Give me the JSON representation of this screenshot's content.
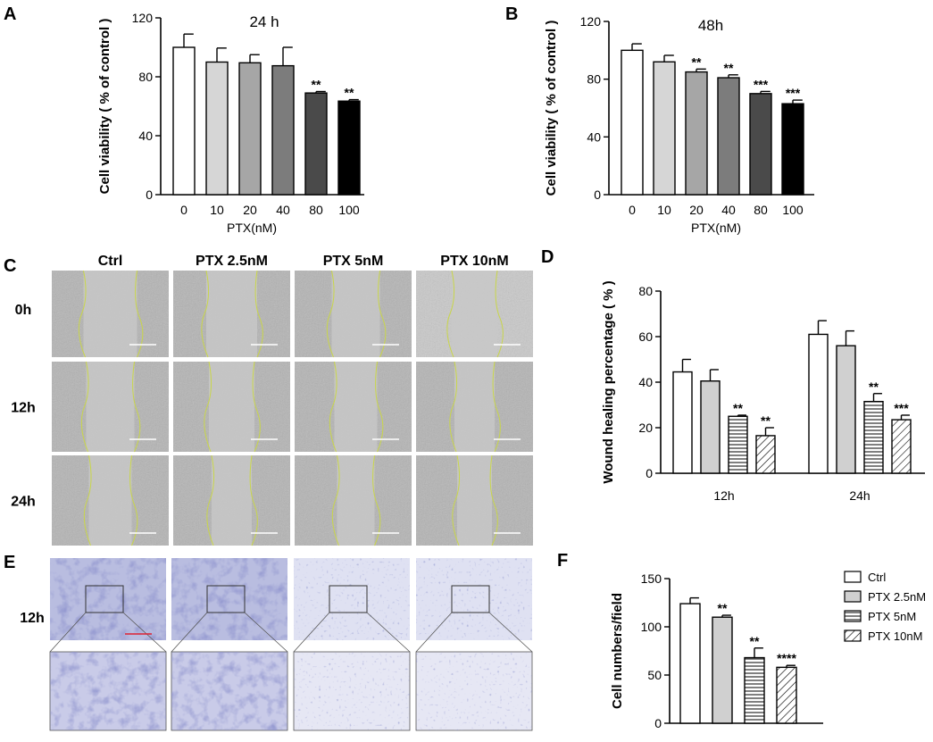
{
  "panel_labels": [
    "A",
    "B",
    "C",
    "D",
    "E",
    "F"
  ],
  "chart_data": [
    {
      "id": "A",
      "type": "bar",
      "title": "24 h",
      "xlabel": "PTX(nM)",
      "ylabel": "Cell viability ( % of control )",
      "categories": [
        "0",
        "10",
        "20",
        "40",
        "80",
        "100"
      ],
      "values": [
        100,
        90,
        89.5,
        87.5,
        69,
        63.5
      ],
      "errors": [
        9,
        9.5,
        5.5,
        12.5,
        1,
        1
      ],
      "annotations": [
        "",
        "",
        "",
        "",
        "**",
        "**"
      ],
      "fills": [
        "#ffffff",
        "#d6d6d6",
        "#a6a6a6",
        "#7c7c7c",
        "#4a4a4a",
        "#000000"
      ],
      "ylim": [
        0,
        120
      ],
      "yticks": [
        0,
        40,
        80,
        120
      ]
    },
    {
      "id": "B",
      "type": "bar",
      "title": "48h",
      "xlabel": "PTX(nM)",
      "ylabel": "Cell viability ( % of control )",
      "categories": [
        "0",
        "10",
        "20",
        "40",
        "80",
        "100"
      ],
      "values": [
        100,
        92,
        85,
        81,
        70,
        63
      ],
      "errors": [
        4.5,
        4.5,
        2,
        2,
        1.5,
        2.5
      ],
      "annotations": [
        "",
        "",
        "**",
        "**",
        "***",
        "***"
      ],
      "fills": [
        "#ffffff",
        "#d6d6d6",
        "#a6a6a6",
        "#7c7c7c",
        "#4a4a4a",
        "#000000"
      ],
      "ylim": [
        0,
        120
      ],
      "yticks": [
        0,
        40,
        80,
        120
      ]
    },
    {
      "id": "D",
      "type": "bar",
      "ylabel": "Wound healing percentage ( % )",
      "categories": [
        "12h",
        "24h"
      ],
      "series": [
        {
          "name": "Ctrl",
          "values": [
            44.5,
            61
          ],
          "errors": [
            5.5,
            6
          ],
          "annotations": [
            "",
            ""
          ]
        },
        {
          "name": "PTX 2.5nM",
          "values": [
            40.5,
            56
          ],
          "errors": [
            5,
            6.5
          ],
          "annotations": [
            "",
            ""
          ]
        },
        {
          "name": "PTX 5nM",
          "values": [
            25,
            31.5
          ],
          "errors": [
            0.5,
            3.5
          ],
          "annotations": [
            "**",
            "**"
          ]
        },
        {
          "name": "PTX 10nM",
          "values": [
            16.5,
            23.5
          ],
          "errors": [
            3.5,
            2
          ],
          "annotations": [
            "**",
            "***"
          ]
        }
      ],
      "ylim": [
        0,
        80
      ],
      "yticks": [
        0,
        20,
        40,
        60,
        80
      ]
    },
    {
      "id": "F",
      "type": "bar",
      "ylabel": "Cell numbers/field",
      "categories": [
        "Ctrl",
        "PTX 2.5nM",
        "PTX 5nM",
        "PTX 10nM"
      ],
      "values": [
        124,
        110,
        68,
        58
      ],
      "errors": [
        6,
        2,
        10,
        2
      ],
      "annotations": [
        "",
        "**",
        "**",
        "****"
      ],
      "ylim": [
        0,
        150
      ],
      "yticks": [
        0,
        50,
        100,
        150
      ],
      "legend": [
        "Ctrl",
        "PTX 2.5nM",
        "PTX 5nM",
        "PTX 10nM"
      ],
      "legend_position": "right"
    }
  ],
  "panel_C": {
    "columns": [
      "Ctrl",
      "PTX 2.5nM",
      "PTX 5nM",
      "PTX 10nM"
    ],
    "rows": [
      "0h",
      "12h",
      "24h"
    ]
  },
  "panel_E": {
    "row_label": "12h"
  }
}
